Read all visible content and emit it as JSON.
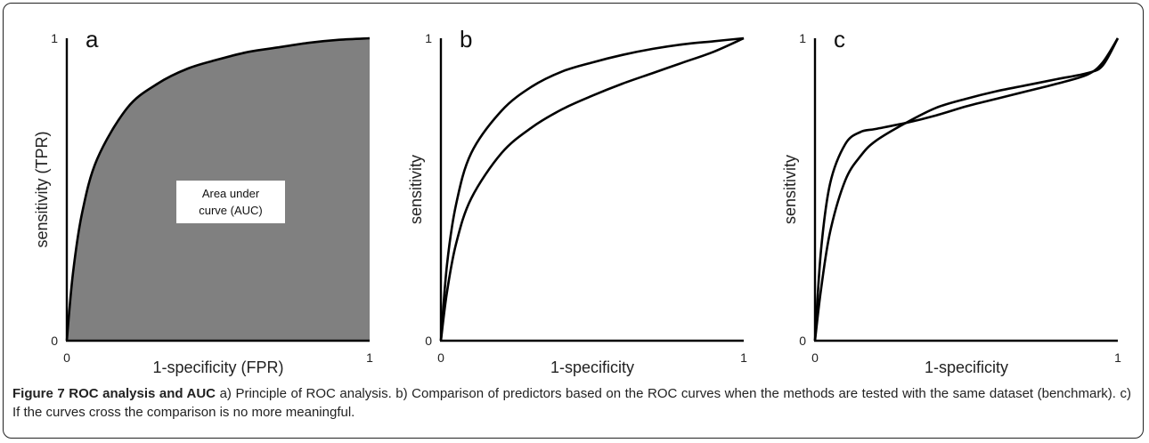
{
  "figure": {
    "label": "Figure 7",
    "title": "ROC analysis and AUC",
    "caption": " a) Principle of ROC analysis. b) Comparison of predictors based on the ROC curves when the methods are tested with the same dataset (benchmark). c) If the curves cross the comparison is no more meaningful."
  },
  "colors": {
    "fill": "#808080",
    "stroke": "#000000",
    "text": "#222222"
  },
  "chart_data": [
    {
      "type": "area",
      "panel": "a",
      "xlabel": "1-specificity (FPR)",
      "ylabel": "sensitivity (TPR)",
      "xlim": [
        0,
        1
      ],
      "ylim": [
        0,
        1
      ],
      "xticks": [
        "0",
        "1"
      ],
      "yticks": [
        "0",
        "1"
      ],
      "annotation": "Area under curve (AUC)",
      "series": [
        {
          "x": [
            0,
            0.02,
            0.05,
            0.1,
            0.2,
            0.3,
            0.4,
            0.5,
            0.6,
            0.7,
            0.8,
            0.9,
            1.0
          ],
          "y": [
            0,
            0.22,
            0.42,
            0.6,
            0.77,
            0.85,
            0.9,
            0.93,
            0.955,
            0.97,
            0.985,
            0.995,
            1.0
          ]
        }
      ]
    },
    {
      "type": "line",
      "panel": "b",
      "xlabel": "1-specificity",
      "ylabel": "sensitivity",
      "xlim": [
        0,
        1
      ],
      "ylim": [
        0,
        1
      ],
      "xticks": [
        "0",
        "1"
      ],
      "yticks": [
        "0",
        "1"
      ],
      "series": [
        {
          "x": [
            0,
            0.02,
            0.05,
            0.1,
            0.2,
            0.3,
            0.4,
            0.5,
            0.6,
            0.7,
            0.8,
            0.9,
            1.0
          ],
          "y": [
            0,
            0.25,
            0.45,
            0.62,
            0.76,
            0.84,
            0.89,
            0.92,
            0.945,
            0.965,
            0.98,
            0.99,
            1.0
          ]
        },
        {
          "x": [
            0,
            0.02,
            0.05,
            0.1,
            0.2,
            0.3,
            0.4,
            0.5,
            0.6,
            0.7,
            0.8,
            0.9,
            1.0
          ],
          "y": [
            0,
            0.16,
            0.32,
            0.47,
            0.62,
            0.705,
            0.765,
            0.81,
            0.85,
            0.885,
            0.92,
            0.955,
            1.0
          ]
        }
      ]
    },
    {
      "type": "line",
      "panel": "c",
      "xlabel": "1-specificity",
      "ylabel": "sensitivity",
      "xlim": [
        0,
        1
      ],
      "ylim": [
        0,
        1
      ],
      "xticks": [
        "0",
        "1"
      ],
      "yticks": [
        "0",
        "1"
      ],
      "series": [
        {
          "x": [
            0,
            0.02,
            0.05,
            0.1,
            0.15,
            0.2,
            0.3,
            0.4,
            0.5,
            0.6,
            0.7,
            0.8,
            0.9,
            0.95,
            1.0
          ],
          "y": [
            0,
            0.3,
            0.52,
            0.65,
            0.69,
            0.7,
            0.72,
            0.745,
            0.775,
            0.8,
            0.825,
            0.85,
            0.88,
            0.92,
            1.0
          ]
        },
        {
          "x": [
            0,
            0.02,
            0.05,
            0.1,
            0.15,
            0.2,
            0.3,
            0.4,
            0.5,
            0.6,
            0.7,
            0.8,
            0.9,
            0.95,
            1.0
          ],
          "y": [
            0,
            0.17,
            0.36,
            0.53,
            0.61,
            0.66,
            0.72,
            0.77,
            0.8,
            0.825,
            0.845,
            0.865,
            0.885,
            0.91,
            1.0
          ]
        }
      ]
    }
  ]
}
